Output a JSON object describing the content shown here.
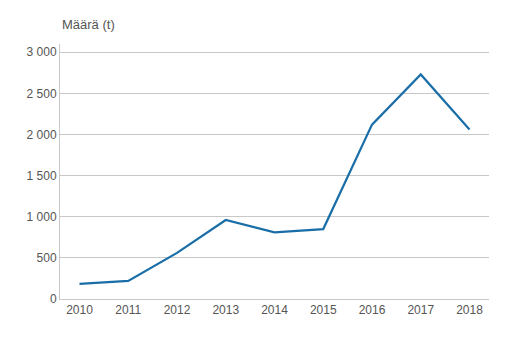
{
  "chart_data": {
    "type": "line",
    "ylabel": "Määrä (t)",
    "x": [
      2010,
      2011,
      2012,
      2013,
      2014,
      2015,
      2016,
      2017,
      2018
    ],
    "values": [
      185,
      220,
      560,
      960,
      810,
      850,
      2120,
      2730,
      2060
    ],
    "color": "#1a6ea8",
    "xlim": [
      2009.6,
      2018.4
    ],
    "xticks": [
      2010,
      2011,
      2012,
      2013,
      2014,
      2015,
      2016,
      2017,
      2018
    ],
    "ylim": [
      0,
      3100
    ],
    "yticks": [
      0,
      500,
      {
        "value": 1000,
        "label": "1 000"
      },
      {
        "value": 1500,
        "label": "1 500"
      },
      {
        "value": 2000,
        "label": "2 000"
      },
      {
        "value": 2500,
        "label": "2 500"
      },
      {
        "value": 3000,
        "label": "3 000"
      }
    ],
    "grid": true
  }
}
